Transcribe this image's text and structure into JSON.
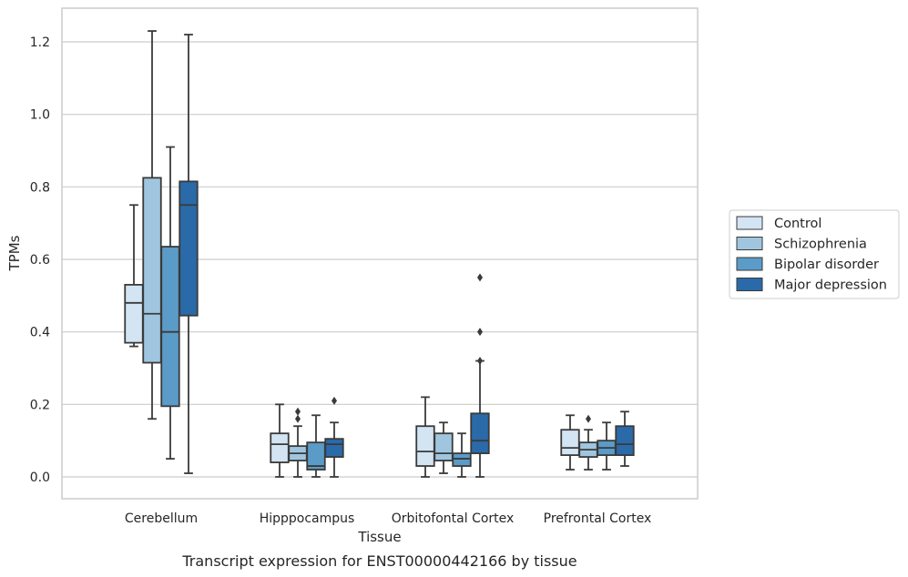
{
  "chart_data": {
    "type": "box",
    "xlabel": "Tissue",
    "ylabel": "TPMs",
    "caption": "Transcript expression for ENST00000442166 by tissue",
    "ylim": [
      -0.06,
      1.29
    ],
    "yticks": [
      0.0,
      0.2,
      0.4,
      0.6,
      0.8,
      1.0,
      1.2
    ],
    "ytick_labels": [
      "0.0",
      "0.2",
      "0.4",
      "0.6",
      "0.8",
      "1.0",
      "1.2"
    ],
    "grid": true,
    "legend_position": "right",
    "categories": [
      "Cerebellum",
      "Hipppocampus",
      "Orbitofontal Cortex",
      "Prefrontal Cortex"
    ],
    "series": [
      {
        "name": "Control",
        "color": "#d3e4f3",
        "boxes": [
          {
            "whislo": 0.36,
            "q1": 0.37,
            "med": 0.48,
            "q3": 0.53,
            "whishi": 0.75,
            "fliers": []
          },
          {
            "whislo": 0.0,
            "q1": 0.04,
            "med": 0.09,
            "q3": 0.12,
            "whishi": 0.2,
            "fliers": []
          },
          {
            "whislo": 0.0,
            "q1": 0.03,
            "med": 0.07,
            "q3": 0.14,
            "whishi": 0.22,
            "fliers": []
          },
          {
            "whislo": 0.02,
            "q1": 0.06,
            "med": 0.08,
            "q3": 0.13,
            "whishi": 0.17,
            "fliers": []
          }
        ]
      },
      {
        "name": "Schizophrenia",
        "color": "#a0c6df",
        "boxes": [
          {
            "whislo": 0.16,
            "q1": 0.315,
            "med": 0.45,
            "q3": 0.825,
            "whishi": 1.23,
            "fliers": []
          },
          {
            "whislo": 0.0,
            "q1": 0.045,
            "med": 0.065,
            "q3": 0.085,
            "whishi": 0.14,
            "fliers": [
              0.16,
              0.18
            ]
          },
          {
            "whislo": 0.01,
            "q1": 0.045,
            "med": 0.065,
            "q3": 0.12,
            "whishi": 0.15,
            "fliers": []
          },
          {
            "whislo": 0.02,
            "q1": 0.055,
            "med": 0.075,
            "q3": 0.095,
            "whishi": 0.13,
            "fliers": [
              0.16
            ]
          }
        ]
      },
      {
        "name": "Bipolar disorder",
        "color": "#5b9bc8",
        "boxes": [
          {
            "whislo": 0.05,
            "q1": 0.195,
            "med": 0.4,
            "q3": 0.635,
            "whishi": 0.91,
            "fliers": []
          },
          {
            "whislo": 0.0,
            "q1": 0.02,
            "med": 0.03,
            "q3": 0.095,
            "whishi": 0.17,
            "fliers": []
          },
          {
            "whislo": 0.0,
            "q1": 0.03,
            "med": 0.05,
            "q3": 0.065,
            "whishi": 0.12,
            "fliers": []
          },
          {
            "whislo": 0.02,
            "q1": 0.06,
            "med": 0.08,
            "q3": 0.1,
            "whishi": 0.15,
            "fliers": []
          }
        ]
      },
      {
        "name": "Major depression",
        "color": "#2a6aa9",
        "boxes": [
          {
            "whislo": 0.01,
            "q1": 0.445,
            "med": 0.75,
            "q3": 0.815,
            "whishi": 1.22,
            "fliers": []
          },
          {
            "whislo": 0.0,
            "q1": 0.055,
            "med": 0.09,
            "q3": 0.105,
            "whishi": 0.15,
            "fliers": [
              0.21
            ]
          },
          {
            "whislo": 0.0,
            "q1": 0.065,
            "med": 0.1,
            "q3": 0.175,
            "whishi": 0.32,
            "fliers": [
              0.32,
              0.4,
              0.55
            ]
          },
          {
            "whislo": 0.03,
            "q1": 0.06,
            "med": 0.09,
            "q3": 0.14,
            "whishi": 0.18,
            "fliers": []
          }
        ]
      }
    ]
  }
}
